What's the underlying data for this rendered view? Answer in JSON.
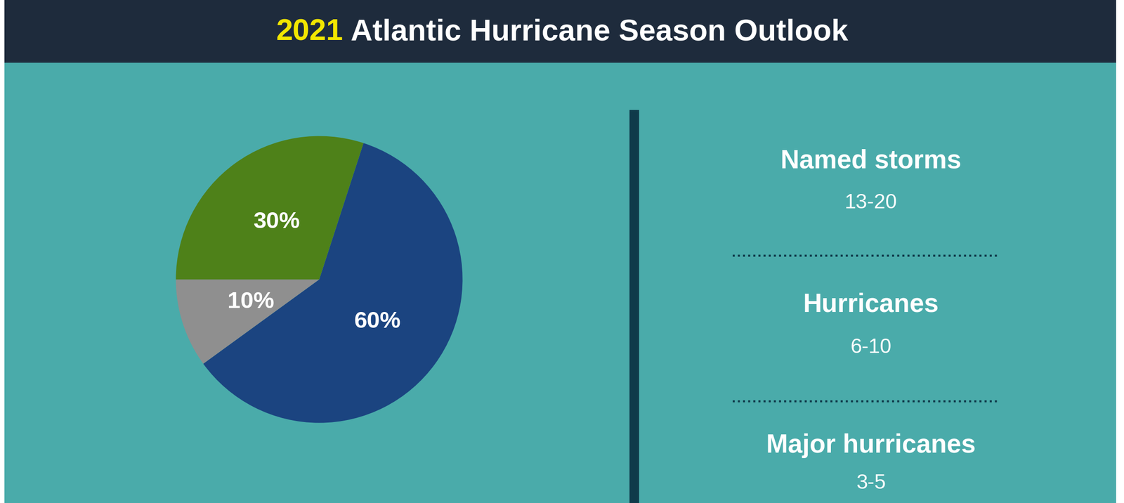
{
  "chart_data": {
    "type": "pie",
    "title": "2021 Atlantic Hurricane Season Outlook",
    "values": [
      60,
      10,
      30
    ],
    "value_labels": [
      "60%",
      "10%",
      "30%"
    ],
    "colors": [
      "#1b4480",
      "#8f8f8f",
      "#4e8119"
    ],
    "data_labels": true,
    "annotations": [
      {
        "label": "Named storms",
        "text": "13-20"
      },
      {
        "label": "Hurricanes",
        "text": "6-10"
      },
      {
        "label": "Major hurricanes",
        "text": "3-5"
      }
    ]
  }
}
